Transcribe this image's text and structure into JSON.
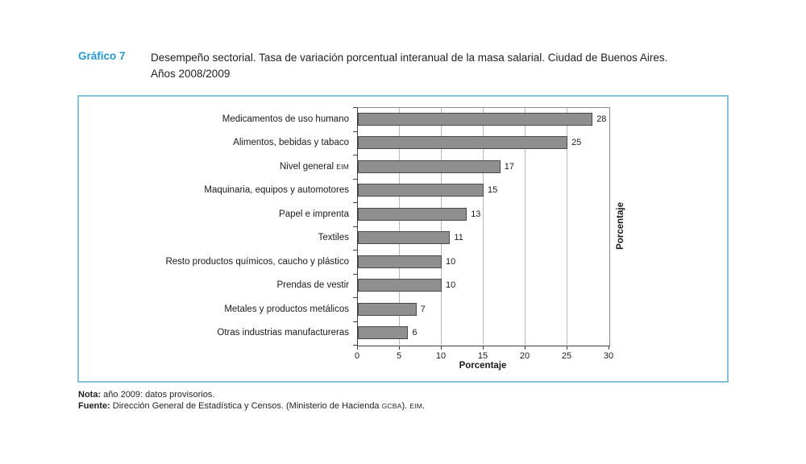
{
  "header": {
    "graph_label": "Gráfico 7",
    "title_line1": "Desempeño sectorial. Tasa de variación porcentual interanual de la masa salarial. Ciudad de Buenos Aires.",
    "title_line2": "Años 2008/2009"
  },
  "chart_data": {
    "type": "bar",
    "orientation": "horizontal",
    "title": "Desempeño sectorial. Tasa de variación porcentual interanual de la masa salarial. Ciudad de Buenos Aires. Años 2008/2009",
    "categories": [
      "Medicamentos de uso humano",
      "Alimentos, bebidas y tabaco",
      "Nivel general EIM",
      "Maquinaria, equipos y automotores",
      "Papel e imprenta",
      "Textiles",
      "Resto productos químicos, caucho y plástico",
      "Prendas de vestir",
      "Metales y productos metálicos",
      "Otras industrias manufactureras"
    ],
    "category_smallcaps_suffix": {
      "2": "EIM"
    },
    "values": [
      28,
      25,
      17,
      15,
      13,
      11,
      10,
      10,
      7,
      6
    ],
    "bar_value_labels": [
      "28",
      "25",
      "17",
      "15",
      "13",
      "11",
      "10",
      "10",
      "7",
      "6"
    ],
    "xlabel": "Porcentaje",
    "right_axis_label": "Porcentaje",
    "xlim": [
      0,
      30
    ],
    "xticks": [
      0,
      5,
      10,
      15,
      20,
      25,
      30
    ],
    "grid": "vertical gridlines at xticks, behind bars",
    "legend": "none",
    "colors": {
      "bar_fill": "#8f8f8f",
      "bar_border": "#4a4a4a",
      "gridline": "#b8b8b8",
      "axis": "#3f3f3f",
      "panel_border": "#85c2dc",
      "accent_blue": "#1f9ad6"
    }
  },
  "footnotes": [
    {
      "label": "Nota:",
      "parts": [
        {
          "text": " año 2009: datos provisorios.",
          "smallcaps": false
        }
      ]
    },
    {
      "label": "Fuente:",
      "parts": [
        {
          "text": " Dirección General de Estadística y Censos. (Ministerio de Hacienda ",
          "smallcaps": false
        },
        {
          "text": "GCBA",
          "smallcaps": true
        },
        {
          "text": "). ",
          "smallcaps": false
        },
        {
          "text": "EIM",
          "smallcaps": true
        },
        {
          "text": ".",
          "smallcaps": false
        }
      ]
    }
  ]
}
